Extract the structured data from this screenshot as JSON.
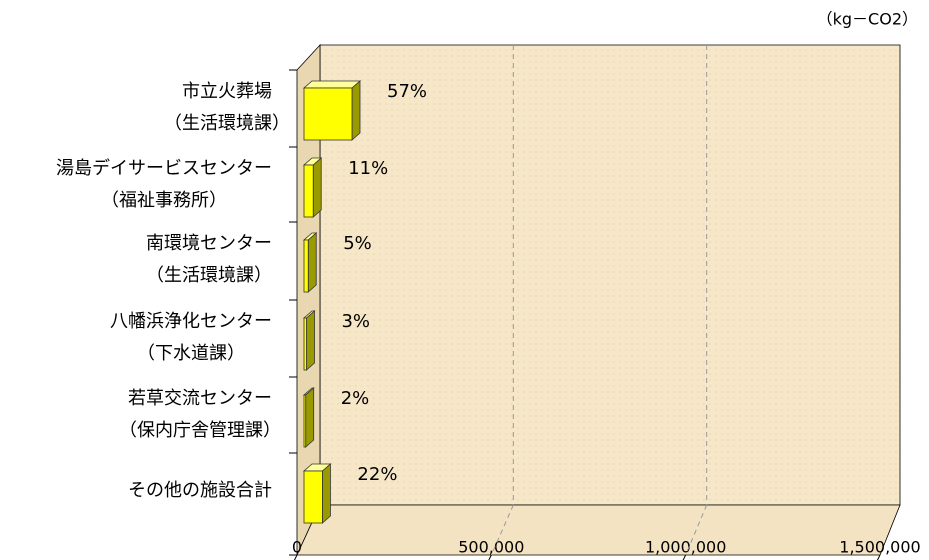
{
  "chart_data": {
    "type": "bar3d",
    "orientation": "horizontal",
    "unit": "（kg－CO2）",
    "categories": [
      [
        "市立火葬場",
        "（生活環境課）"
      ],
      [
        "湯島デイサービスセンター",
        "（福祉事務所）"
      ],
      [
        "南環境センター",
        "（生活環境課）"
      ],
      [
        "八幡浜浄化センター",
        "（下水道課）"
      ],
      [
        "若草交流センター",
        "（保内庁舎管理課）"
      ],
      [
        "その他の施設合計"
      ]
    ],
    "values": [
      125000,
      24000,
      11000,
      6500,
      4400,
      48000
    ],
    "percent_labels": [
      "57%",
      "11%",
      "5%",
      "3%",
      "2%",
      "22%"
    ],
    "color": "#ffff00",
    "xlim": [
      0,
      1500000
    ],
    "xticks": [
      0,
      {
        "value": 500000,
        "label": "500,000"
      },
      {
        "value": 1000000,
        "label": "1,000,000"
      },
      {
        "value": 1500000,
        "label": "1,500,000"
      }
    ],
    "grid": true
  }
}
